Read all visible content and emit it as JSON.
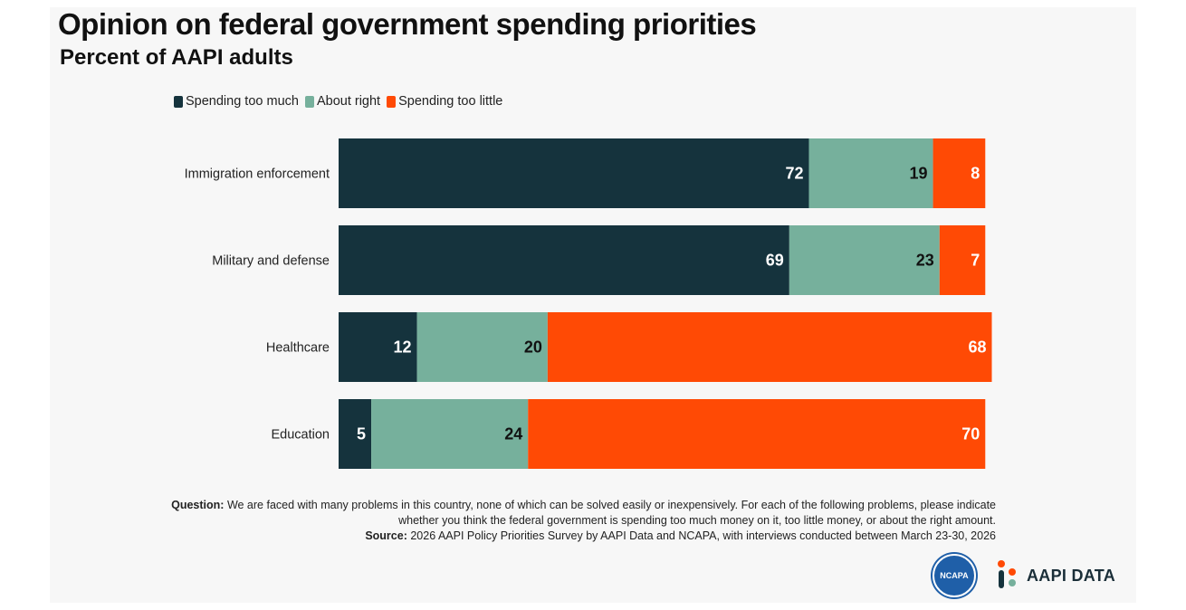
{
  "header": {
    "title": "Opinion on federal government spending priorities",
    "subtitle": "Percent of AAPI adults"
  },
  "chart_data": {
    "type": "bar",
    "orientation": "horizontal",
    "stacked": true,
    "categories": [
      "Immigration enforcement",
      "Military and defense",
      "Healthcare",
      "Education"
    ],
    "series": [
      {
        "name": "Spending too much",
        "color": "#15333d",
        "values": [
          72,
          69,
          12,
          5
        ]
      },
      {
        "name": "About right",
        "color": "#76b09c",
        "values": [
          19,
          23,
          20,
          24
        ]
      },
      {
        "name": "Spending too little",
        "color": "#ff4a05",
        "values": [
          8,
          7,
          68,
          70
        ]
      }
    ],
    "data_labels": true,
    "legend_position": "top-left",
    "grid": false
  },
  "notes": {
    "question_label": "Question:",
    "question_text": "We are faced with many problems in this country, none of which can be solved easily or inexpensively. For each of the following problems, please indicate whether you think the federal government is spending too much money on it, too little money, or about the right amount.",
    "source_label": "Source:",
    "source_text": "2026 AAPI Policy Priorities Survey by AAPI Data and NCAPA, with interviews conducted between March 23-30, 2026"
  },
  "logos": {
    "ncapa": "NCAPA",
    "aapi_data": "AAPI DATA"
  }
}
